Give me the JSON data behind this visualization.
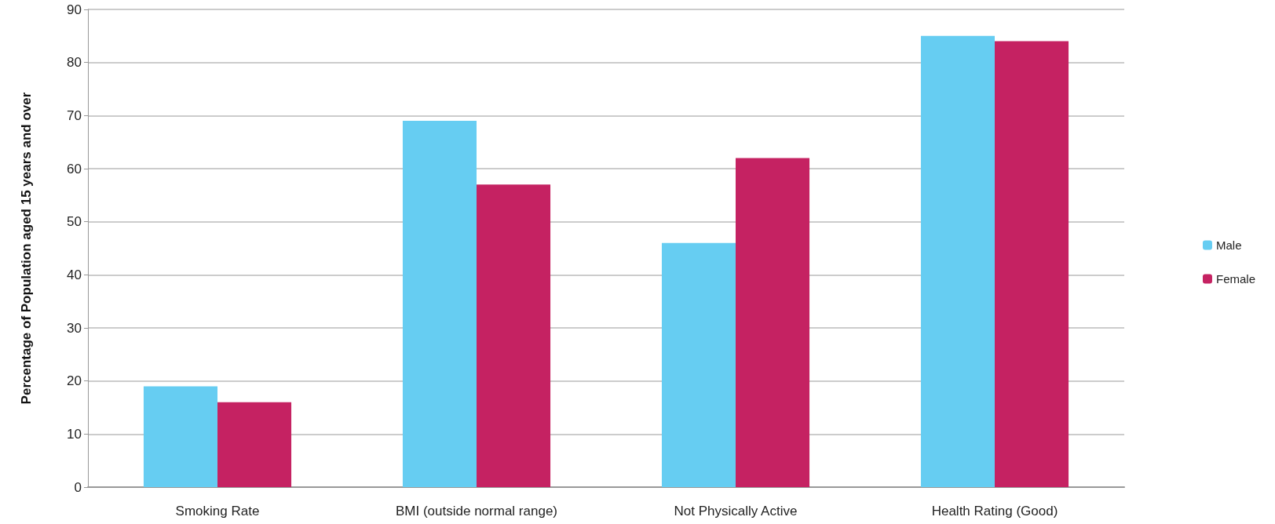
{
  "chart_data": {
    "type": "bar",
    "ylabel": "Percentage of Population aged 15 years and over",
    "categories": [
      "Smoking Rate",
      "BMI (outside normal range)",
      "Not Physically Active",
      "Health Rating (Good)"
    ],
    "series": [
      {
        "name": "Male",
        "color": "#66cdf2",
        "values": [
          19,
          69,
          46,
          85
        ]
      },
      {
        "name": "Female",
        "color": "#c52262",
        "values": [
          16,
          57,
          62,
          84
        ]
      }
    ],
    "ylim": [
      0,
      90
    ],
    "yticks": [
      0,
      10,
      20,
      30,
      40,
      50,
      60,
      70,
      80,
      90
    ],
    "grid": "y",
    "legend": "right"
  }
}
